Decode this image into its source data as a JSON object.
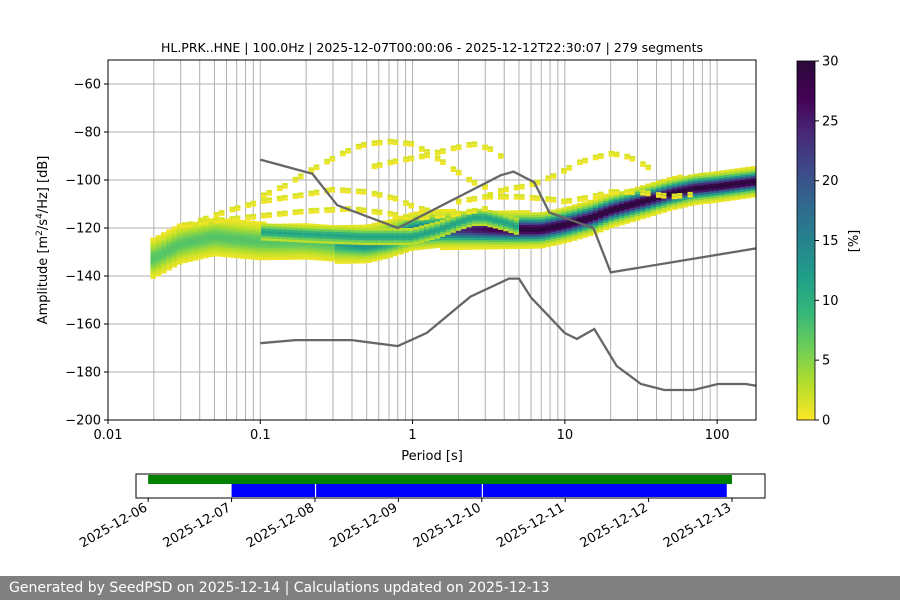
{
  "chart_data": [
    {
      "type": "heatmap",
      "title": "HL.PRK..HNE | 100.0Hz | 2025-12-07T00:00:06 - 2025-12-12T22:30:07 | 279 segments",
      "xlabel": "Period [s]",
      "ylabel_main": "Amplitude [m",
      "ylabel_sup1": "2",
      "ylabel_mid": "/s",
      "ylabel_sup2": "4",
      "ylabel_end": "/Hz] [dB]",
      "xscale": "log",
      "xlim": [
        0.01,
        180
      ],
      "ylim": [
        -200,
        -50
      ],
      "grid": true,
      "x_ticks": [
        {
          "value": 0.01,
          "label": "0.01"
        },
        {
          "value": 0.1,
          "label": "0.1"
        },
        {
          "value": 1,
          "label": "1"
        },
        {
          "value": 10,
          "label": "10"
        },
        {
          "value": 100,
          "label": "100"
        }
      ],
      "y_ticks": [
        {
          "value": -60,
          "label": "−60"
        },
        {
          "value": -80,
          "label": "−80"
        },
        {
          "value": -100,
          "label": "−100"
        },
        {
          "value": -120,
          "label": "−120"
        },
        {
          "value": -140,
          "label": "−140"
        },
        {
          "value": -160,
          "label": "−160"
        },
        {
          "value": -180,
          "label": "−180"
        },
        {
          "value": -200,
          "label": "−200"
        }
      ],
      "colorbar": {
        "label": "[%]",
        "range": [
          0,
          30
        ],
        "colormap": "viridis_r",
        "ticks": [
          {
            "value": 0,
            "label": "0"
          },
          {
            "value": 5,
            "label": "5"
          },
          {
            "value": 10,
            "label": "10"
          },
          {
            "value": 15,
            "label": "15"
          },
          {
            "value": 20,
            "label": "20"
          },
          {
            "value": 25,
            "label": "25"
          },
          {
            "value": 30,
            "label": "30"
          }
        ]
      },
      "psd_mode": [
        [
          0.02,
          -133
        ],
        [
          0.03,
          -127
        ],
        [
          0.05,
          -124
        ],
        [
          0.07,
          -125
        ],
        [
          0.1,
          -126
        ],
        [
          0.2,
          -126
        ],
        [
          0.3,
          -127
        ],
        [
          0.5,
          -127
        ],
        [
          0.7,
          -125
        ],
        [
          1,
          -122
        ],
        [
          1.5,
          -121
        ],
        [
          2,
          -121
        ],
        [
          3,
          -121
        ],
        [
          4,
          -121
        ],
        [
          5,
          -121
        ],
        [
          7,
          -121
        ],
        [
          10,
          -119
        ],
        [
          15,
          -116
        ],
        [
          20,
          -113
        ],
        [
          30,
          -110
        ],
        [
          50,
          -106
        ],
        [
          70,
          -104
        ],
        [
          100,
          -103
        ],
        [
          180,
          -101
        ]
      ],
      "psd_secondary": [
        [
          0.1,
          -122
        ],
        [
          0.2,
          -123
        ],
        [
          0.5,
          -124
        ],
        [
          1,
          -124
        ],
        [
          1.5,
          -121
        ],
        [
          2,
          -118
        ],
        [
          2.5,
          -116
        ],
        [
          3,
          -116
        ],
        [
          4,
          -118
        ],
        [
          5,
          -120
        ]
      ],
      "psd_sparse": [
        [
          [
            0.1,
            -108
          ],
          [
            0.15,
            -103
          ],
          [
            0.2,
            -98
          ],
          [
            0.3,
            -92
          ],
          [
            0.4,
            -88
          ],
          [
            0.5,
            -86
          ],
          [
            0.7,
            -85
          ],
          [
            1,
            -86
          ],
          [
            1.3,
            -90
          ],
          [
            1.8,
            -96
          ],
          [
            2.5,
            -102
          ],
          [
            3,
            -104
          ]
        ],
        [
          [
            0.04,
            -118
          ],
          [
            0.06,
            -114
          ],
          [
            0.1,
            -110
          ],
          [
            0.2,
            -107
          ],
          [
            0.3,
            -105
          ],
          [
            0.5,
            -106
          ],
          [
            0.8,
            -109
          ],
          [
            1,
            -112
          ],
          [
            1.3,
            -114
          ]
        ],
        [
          [
            0.5,
            -96
          ],
          [
            0.8,
            -93
          ],
          [
            1.2,
            -91
          ],
          [
            1.8,
            -88
          ],
          [
            2.5,
            -86
          ],
          [
            3.2,
            -88
          ],
          [
            4,
            -92
          ]
        ],
        [
          [
            3,
            -108
          ],
          [
            4,
            -105
          ],
          [
            5,
            -104
          ],
          [
            6,
            -103
          ],
          [
            8,
            -100
          ],
          [
            10,
            -97
          ],
          [
            12,
            -94
          ],
          [
            15,
            -92
          ],
          [
            20,
            -90
          ],
          [
            25,
            -91
          ],
          [
            30,
            -93
          ],
          [
            40,
            -98
          ]
        ],
        [
          [
            2,
            -110
          ],
          [
            3,
            -108
          ],
          [
            5,
            -108
          ],
          [
            8,
            -109
          ],
          [
            10,
            -110
          ],
          [
            15,
            -108
          ],
          [
            20,
            -106
          ],
          [
            30,
            -106
          ],
          [
            50,
            -108
          ],
          [
            70,
            -107
          ]
        ],
        [
          [
            0.03,
            -120
          ],
          [
            0.05,
            -118
          ],
          [
            0.1,
            -116
          ],
          [
            0.2,
            -114
          ],
          [
            0.4,
            -113
          ],
          [
            0.7,
            -115
          ],
          [
            1,
            -117
          ],
          [
            2,
            -115
          ],
          [
            3,
            -113
          ]
        ]
      ],
      "nhnm": [
        [
          0.1,
          -91.5
        ],
        [
          0.22,
          -97.4
        ],
        [
          0.32,
          -110.5
        ],
        [
          0.8,
          -120
        ],
        [
          3.8,
          -98
        ],
        [
          4.6,
          -96.5
        ],
        [
          6.3,
          -101
        ],
        [
          7.9,
          -113.5
        ],
        [
          15.4,
          -120
        ],
        [
          20,
          -138.5
        ],
        [
          180,
          -128.5
        ]
      ],
      "nlnm": [
        [
          0.1,
          -168
        ],
        [
          0.17,
          -166.7
        ],
        [
          0.4,
          -166.7
        ],
        [
          0.8,
          -169.2
        ],
        [
          1.24,
          -163.7
        ],
        [
          2.4,
          -148.6
        ],
        [
          4.3,
          -141.1
        ],
        [
          5,
          -141.1
        ],
        [
          6,
          -149
        ],
        [
          10,
          -163.8
        ],
        [
          12,
          -166.2
        ],
        [
          15.6,
          -162.1
        ],
        [
          21.9,
          -177.5
        ],
        [
          31.6,
          -185
        ],
        [
          45,
          -187.5
        ],
        [
          70,
          -187.5
        ],
        [
          101,
          -185
        ],
        [
          154,
          -185
        ],
        [
          180,
          -185.7
        ]
      ]
    },
    {
      "type": "timeline",
      "date_ticks": [
        {
          "value": "2025-12-06",
          "label": "2025-12-06"
        },
        {
          "value": "2025-12-07",
          "label": "2025-12-07"
        },
        {
          "value": "2025-12-08",
          "label": "2025-12-08"
        },
        {
          "value": "2025-12-09",
          "label": "2025-12-09"
        },
        {
          "value": "2025-12-10",
          "label": "2025-12-10"
        },
        {
          "value": "2025-12-11",
          "label": "2025-12-11"
        },
        {
          "value": "2025-12-12",
          "label": "2025-12-12"
        },
        {
          "value": "2025-12-13",
          "label": "2025-12-13"
        }
      ],
      "range": [
        "2025-12-05T20:30:00",
        "2025-12-13T09:30:00"
      ],
      "available_data": {
        "color": "#008000",
        "spans": [
          [
            "2025-12-06T00:00:00",
            "2025-12-13T00:00:00"
          ]
        ]
      },
      "psd_segments": {
        "color": "#0000ff",
        "spans": [
          [
            "2025-12-07T00:00:06",
            "2025-12-08T00:00:00"
          ],
          [
            "2025-12-08T00:20:00",
            "2025-12-10T00:00:00"
          ],
          [
            "2025-12-10T00:20:00",
            "2025-12-12T22:30:07"
          ]
        ]
      }
    }
  ],
  "footer": {
    "text": "Generated by SeedPSD on 2025-12-14 | Calculations updated on 2025-12-13"
  },
  "colors": {
    "noise_model": "#666666",
    "grid": "#b0b0b0"
  }
}
